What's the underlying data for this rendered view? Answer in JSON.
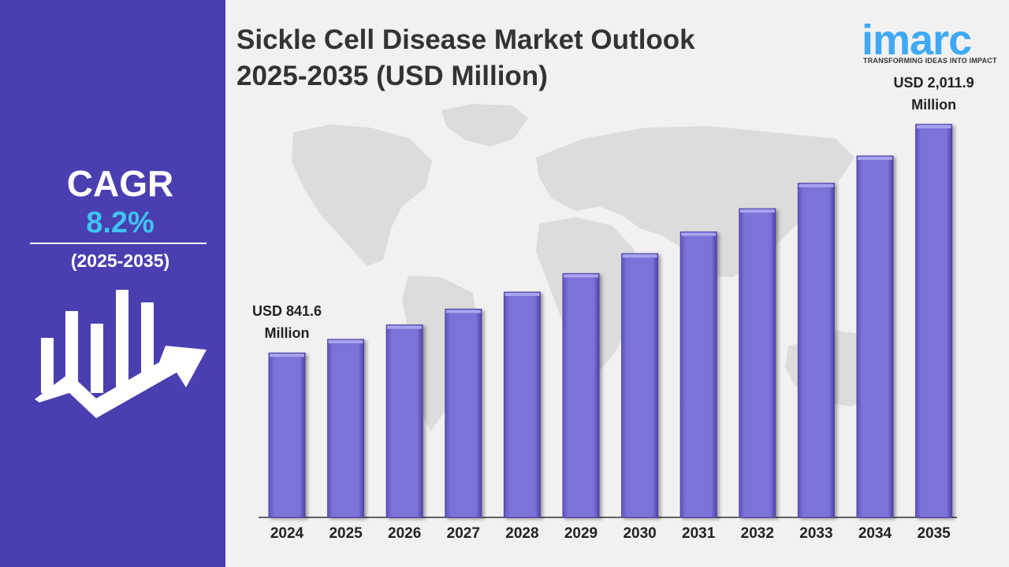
{
  "title_line1": "Sickle Cell Disease Market Outlook",
  "title_line2": "2025-2035 (USD Million)",
  "sidebar": {
    "cagr_label": "CAGR",
    "cagr_value": "8.2%",
    "cagr_period": "(2025-2035)"
  },
  "logo": {
    "word": "imarc",
    "tagline": "TRANSFORMING IDEAS INTO IMPACT"
  },
  "colors": {
    "sidebar": "#4a3fb0",
    "bar": "#7b72d6",
    "accent": "#3fc3f2",
    "logo": "#3fa9f5"
  },
  "chart_data": {
    "type": "bar",
    "title": "Sickle Cell Disease Market Outlook 2025-2035 (USD Million)",
    "categories": [
      "2024",
      "2025",
      "2026",
      "2027",
      "2028",
      "2029",
      "2030",
      "2031",
      "2032",
      "2033",
      "2034",
      "2035"
    ],
    "values": [
      841.6,
      911,
      985,
      1066,
      1153,
      1248,
      1350,
      1461,
      1580,
      1710,
      1850,
      2011.9
    ],
    "annotations": [
      {
        "category": "2024",
        "line1": "USD 841.6",
        "line2": "Million"
      },
      {
        "category": "2035",
        "line1": "USD 2,011.9",
        "line2": "Million"
      }
    ],
    "ylim": [
      0,
      2100
    ],
    "grid": false
  }
}
